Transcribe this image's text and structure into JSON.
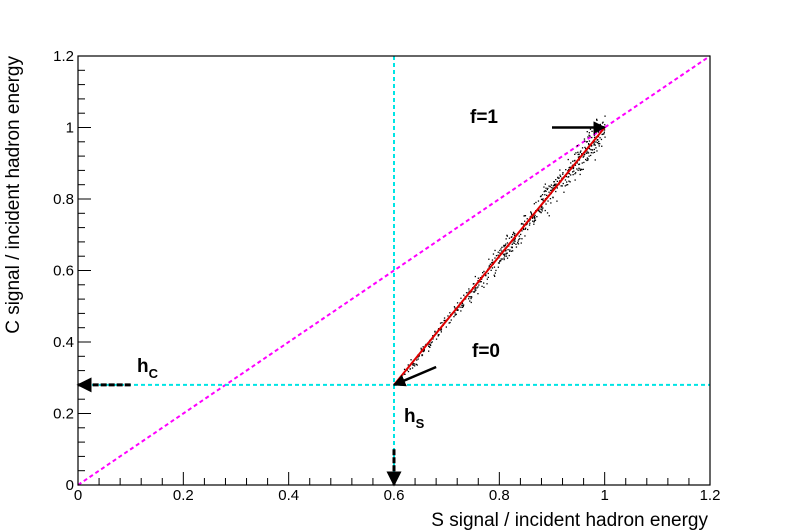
{
  "chart_data": {
    "type": "scatter",
    "xlabel": "S signal / incident hadron energy",
    "ylabel": "C signal / incident hadron energy",
    "xlim": [
      0,
      1.2
    ],
    "ylim": [
      0,
      1.2
    ],
    "x_ticks": [
      "0",
      "0.2",
      "0.4",
      "0.6",
      "0.8",
      "1",
      "1.2"
    ],
    "y_ticks": [
      "0",
      "0.2",
      "0.4",
      "0.6",
      "0.8",
      "1",
      "1.2"
    ],
    "grid": false,
    "points": {
      "color": "#000000",
      "x_range": [
        0.61,
        1.0
      ],
      "line": {
        "from": [
          0.6,
          0.28
        ],
        "to": [
          1.0,
          1.0
        ]
      },
      "count": 600
    },
    "reference_lines": [
      {
        "kind": "diagonal",
        "from": [
          0,
          0
        ],
        "to": [
          1.2,
          1.2
        ],
        "color": "#ff00ff",
        "style": "dashed"
      },
      {
        "kind": "vertical",
        "x": 0.6,
        "color": "#00e5e5",
        "style": "dashed"
      },
      {
        "kind": "horizontal",
        "y": 0.28,
        "color": "#00e5e5",
        "style": "dashed"
      }
    ],
    "fit_line": {
      "from": [
        0.6,
        0.28
      ],
      "to": [
        1.0,
        1.0
      ],
      "color": "#e00000"
    },
    "annotations": [
      {
        "id": "f1",
        "text": "f=1",
        "arrow_from": [
          0.9,
          1.0
        ],
        "arrow_to": [
          1.0,
          1.0
        ]
      },
      {
        "id": "f0",
        "text": "f=0",
        "arrow_from": [
          0.68,
          0.33
        ],
        "arrow_to": [
          0.6,
          0.28
        ]
      },
      {
        "id": "hc",
        "label": "h",
        "sub": "C",
        "arrow_from": [
          0.1,
          0.28
        ],
        "arrow_to": [
          0.0,
          0.28
        ]
      },
      {
        "id": "hs",
        "label": "h",
        "sub": "S",
        "arrow_from": [
          0.6,
          0.1
        ],
        "arrow_to": [
          0.6,
          0.0
        ]
      }
    ]
  }
}
